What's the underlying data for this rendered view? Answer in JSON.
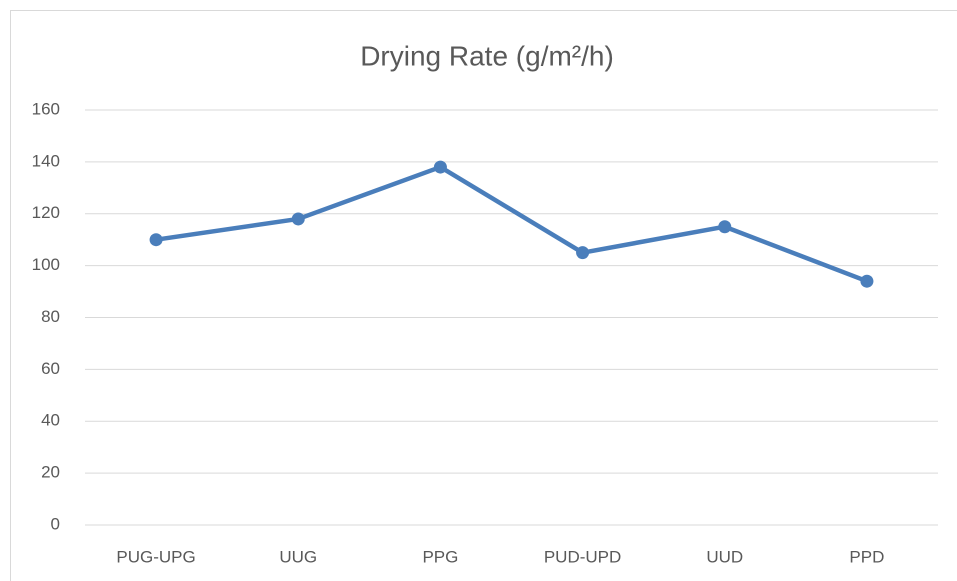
{
  "chart_data": {
    "type": "line",
    "title": "Drying Rate (g/m²/h)",
    "categories": [
      "PUG-UPG",
      "UUG",
      "PPG",
      "PUD-UPD",
      "UUD",
      "PPD"
    ],
    "values": [
      110,
      118,
      138,
      105,
      115,
      94
    ],
    "color": "#4a7ebb",
    "ylim": [
      0,
      160
    ],
    "yticks": [
      0,
      20,
      40,
      60,
      80,
      100,
      120,
      140,
      160
    ],
    "grid": true
  }
}
